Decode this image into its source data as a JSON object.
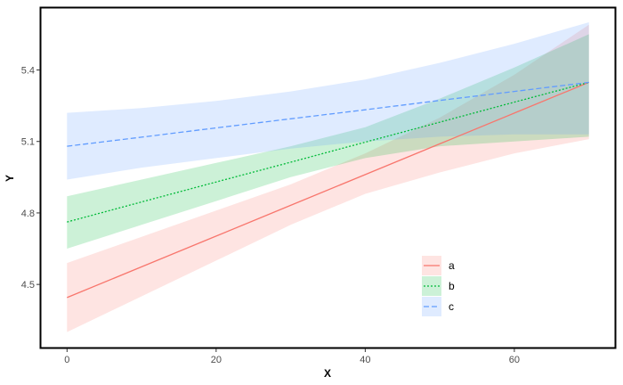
{
  "chart_data": {
    "type": "line",
    "title": "",
    "xlabel": "X",
    "ylabel": "Y",
    "xlim": [
      -3.5,
      73.5
    ],
    "ylim": [
      4.235,
      5.66
    ],
    "x_ticks": [
      0,
      20,
      40,
      60
    ],
    "y_ticks": [
      4.5,
      4.8,
      5.1,
      5.4
    ],
    "x_tick_labels": [
      "0",
      "20",
      "40",
      "60"
    ],
    "y_tick_labels": [
      "4.5",
      "4.8",
      "5.1",
      "5.4"
    ],
    "grid": false,
    "legend_position": "bottom-right",
    "x": [
      0,
      10,
      20,
      30,
      40,
      50,
      60,
      70
    ],
    "series": [
      {
        "name": "a",
        "color": "#F8766D",
        "dash": "solid",
        "values": [
          4.445,
          4.574,
          4.703,
          4.832,
          4.961,
          5.09,
          5.219,
          5.348
        ],
        "lower": [
          4.3,
          4.45,
          4.6,
          4.75,
          4.88,
          4.97,
          5.05,
          5.11
        ],
        "upper": [
          4.59,
          4.7,
          4.81,
          4.92,
          5.05,
          5.2,
          5.38,
          5.59
        ]
      },
      {
        "name": "b",
        "color": "#00BA38",
        "dash": "dotted",
        "values": [
          4.762,
          4.846,
          4.93,
          5.013,
          5.097,
          5.181,
          5.265,
          5.348
        ],
        "lower": [
          4.65,
          4.75,
          4.85,
          4.95,
          5.03,
          5.08,
          5.1,
          5.12
        ],
        "upper": [
          4.87,
          4.94,
          5.01,
          5.08,
          5.16,
          5.28,
          5.41,
          5.55
        ]
      },
      {
        "name": "c",
        "color": "#619CFF",
        "dash": "dashed",
        "values": [
          5.08,
          5.118,
          5.157,
          5.195,
          5.233,
          5.272,
          5.31,
          5.348
        ],
        "lower": [
          4.94,
          4.99,
          5.03,
          5.07,
          5.1,
          5.12,
          5.13,
          5.13
        ],
        "upper": [
          5.22,
          5.24,
          5.27,
          5.31,
          5.36,
          5.43,
          5.51,
          5.6
        ]
      }
    ],
    "ribbon_opacity": 0.2,
    "axis_color": "#000000"
  }
}
